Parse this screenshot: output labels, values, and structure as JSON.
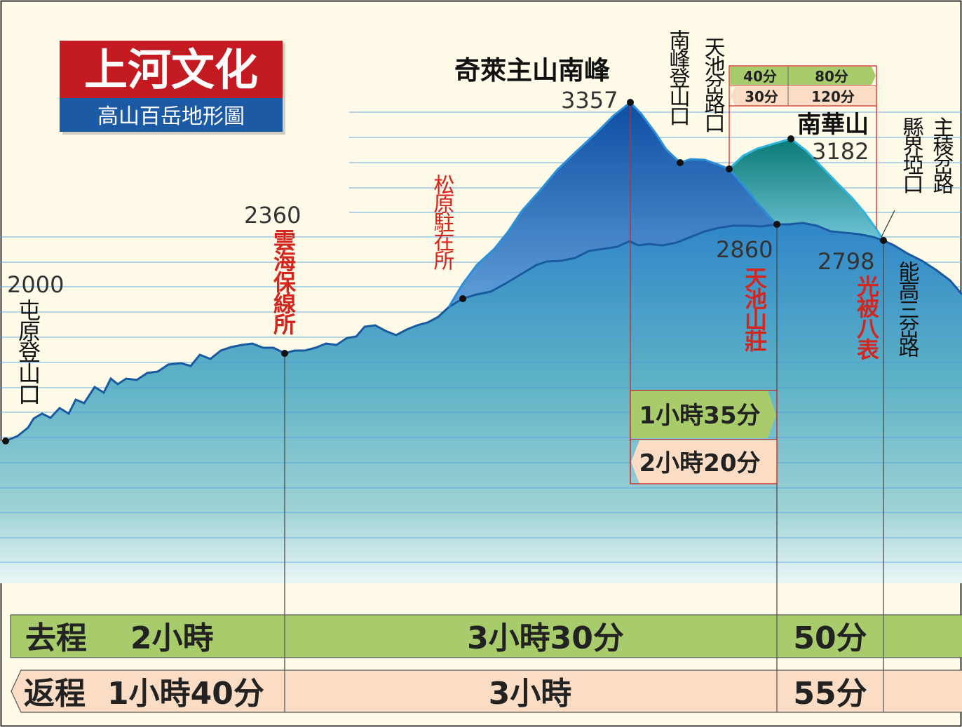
{
  "logo": {
    "brand": "上河文化",
    "subtitle": "高山百岳地形圖",
    "colors": {
      "red": "#c41a22",
      "blue": "#1d5aa6"
    }
  },
  "peaks": {
    "south_peak": {
      "name": "奇萊主山南峰",
      "elevation": "3357"
    },
    "nanhua": {
      "name": "南華山",
      "elevation": "3182"
    }
  },
  "points": {
    "tunyuan": {
      "name": "屯原登山口",
      "elevation": "2000"
    },
    "yunhai": {
      "name": "雲海保線所",
      "elevation": "2360"
    },
    "songyuan": {
      "name": "松原駐在所"
    },
    "south_trailhead": {
      "name": "南峰登山口"
    },
    "tianchi_fork": {
      "name": "天池岔路口"
    },
    "tianchi_lodge": {
      "name": "天池山莊",
      "elevation": "2860"
    },
    "guangbei": {
      "name": "光被八表",
      "elevation": "2798"
    },
    "county_pass": {
      "name": "縣界埡口"
    },
    "main_ridge_fork": {
      "name": "主稜岔路"
    },
    "nenggao_fork": {
      "name": "能高三岔路"
    }
  },
  "side_trip_times": {
    "upper": {
      "left": "40分",
      "right": "80分"
    },
    "lower": {
      "left": "30分",
      "right": "120分"
    }
  },
  "side_peak_times": {
    "go": "1小時35分",
    "return": "2小時20分"
  },
  "timeline": {
    "go": {
      "label": "去程",
      "seg1": "2小時",
      "seg2": "3小時30分",
      "seg3": "50分"
    },
    "return": {
      "label": "返程",
      "seg1": "1小時40分",
      "seg2": "3小時",
      "seg3": "55分"
    }
  },
  "colors": {
    "background": "#fffbe8",
    "grid": "#4a9fe0",
    "south_peak_mountain": "#1e5fae",
    "nanhua_mountain": "#13807e",
    "red_label": "#d3261f",
    "go_bar": "#a8cc6b",
    "return_bar": "#fbdcc4"
  }
}
